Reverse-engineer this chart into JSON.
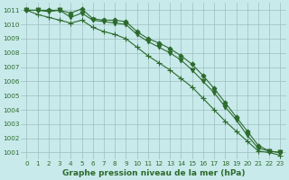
{
  "title": "Graphe pression niveau de la mer (hPa)",
  "background_color": "#c8eaea",
  "grid_color": "#9ebebe",
  "line_color": "#2d6a2d",
  "marker_color": "#2d6a2d",
  "xlim": [
    -0.5,
    23.5
  ],
  "ylim": [
    1000.5,
    1011.5
  ],
  "yticks": [
    1001,
    1002,
    1003,
    1004,
    1005,
    1006,
    1007,
    1008,
    1009,
    1010,
    1011
  ],
  "xticks": [
    0,
    1,
    2,
    3,
    4,
    5,
    6,
    7,
    8,
    9,
    10,
    11,
    12,
    13,
    14,
    15,
    16,
    17,
    18,
    19,
    20,
    21,
    22,
    23
  ],
  "series": [
    [
      1011.0,
      1011.0,
      1011.0,
      1011.0,
      1010.8,
      1011.1,
      1010.4,
      1010.3,
      1010.3,
      1010.2,
      1009.5,
      1009.0,
      1008.7,
      1008.3,
      1007.8,
      1007.2,
      1006.4,
      1005.5,
      1004.5,
      1003.5,
      1002.5,
      1001.5,
      1001.1,
      1001.0
    ],
    [
      1011.0,
      1011.0,
      1010.9,
      1011.0,
      1010.5,
      1010.8,
      1010.3,
      1010.2,
      1010.1,
      1010.0,
      1009.3,
      1008.8,
      1008.4,
      1008.0,
      1007.5,
      1006.8,
      1006.0,
      1005.2,
      1004.2,
      1003.3,
      1002.2,
      1001.3,
      1001.1,
      1001.0
    ],
    [
      1011.0,
      1010.7,
      1010.5,
      1010.3,
      1010.1,
      1010.3,
      1009.8,
      1009.5,
      1009.3,
      1009.0,
      1008.4,
      1007.8,
      1007.3,
      1006.8,
      1006.2,
      1005.6,
      1004.8,
      1004.0,
      1003.2,
      1002.5,
      1001.8,
      1001.1,
      1001.0,
      1000.8
    ]
  ],
  "markers": [
    "D",
    "v",
    "+"
  ],
  "markersizes": [
    2.5,
    3.5,
    5
  ],
  "linewidths": [
    0.8,
    0.8,
    0.8
  ],
  "xlabel_fontsize": 6.5,
  "tick_fontsize": 5.2
}
